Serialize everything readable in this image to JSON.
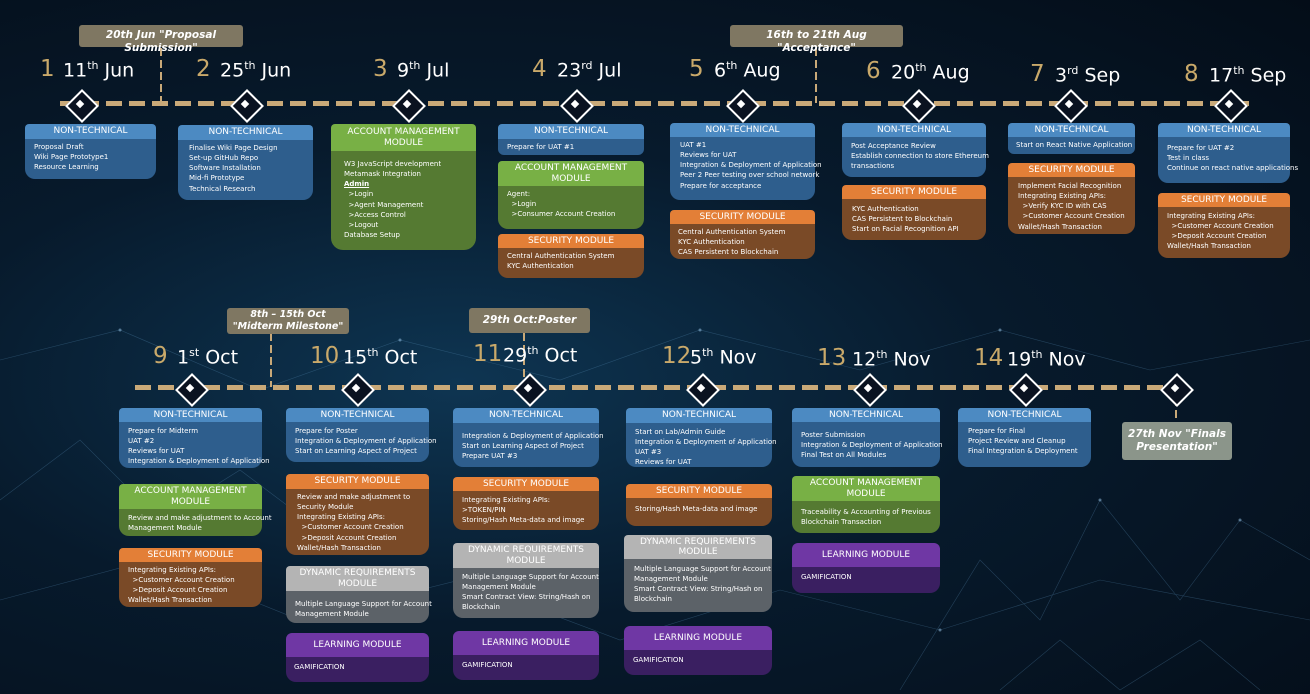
{
  "milestones": [
    {
      "n": "1",
      "d": "11",
      "s": "th",
      "m": "Jun"
    },
    {
      "n": "2",
      "d": "25",
      "s": "th",
      "m": "Jun"
    },
    {
      "n": "3",
      "d": "9",
      "s": "th",
      "m": "Jul"
    },
    {
      "n": "4",
      "d": "23",
      "s": "rd",
      "m": "Jul"
    },
    {
      "n": "5",
      "d": "6",
      "s": "th",
      "m": "Aug"
    },
    {
      "n": "6",
      "d": "20",
      "s": "th",
      "m": "Aug"
    },
    {
      "n": "7",
      "d": "3",
      "s": "rd",
      "m": "Sep"
    },
    {
      "n": "8",
      "d": "17",
      "s": "th",
      "m": "Sep"
    },
    {
      "n": "9",
      "d": "1",
      "s": "st",
      "m": "Oct"
    },
    {
      "n": "10",
      "d": "15",
      "s": "th",
      "m": "Oct"
    },
    {
      "n": "11",
      "d": "29",
      "s": "th",
      "m": "Oct"
    },
    {
      "n": "12",
      "d": "5",
      "s": "th",
      "m": "Nov"
    },
    {
      "n": "13",
      "d": "12",
      "s": "th",
      "m": "Nov"
    },
    {
      "n": "14",
      "d": "19",
      "s": "th",
      "m": "Nov"
    }
  ],
  "annotations": {
    "proposal": "20th Jun \"Proposal Submission\"",
    "acceptance": "16th to 21th Aug \"Acceptance\"",
    "midterm": "8th – 15th Oct \"Midterm Milestone\"",
    "poster": "29th Oct:Poster",
    "finals": "27th Nov \"Finals Presentation\""
  },
  "headings": {
    "nt": "NON-TECHNICAL",
    "am": "ACCOUNT MANAGEMENT MODULE",
    "sc": "SECURITY MODULE",
    "dy": "DYNAMIC REQUIREMENTS MODULE",
    "lm": "LEARNING MODULE"
  },
  "b1": {
    "nt": "Proposal Draft\nWiki Page Prototype1\nResource Learning"
  },
  "b2": {
    "nt": "Finalise Wiki Page Design\nSet-up GitHub Repo\nSoftware Installation\nMid-fi Prototype\nTechnical Research"
  },
  "b3": {
    "am1": "W3 JavaScript development\nMetamask Integration",
    "am_admin": "Admin",
    "am2": "  >Login\n  >Agent Management\n  >Access Control\n  >Logout\nDatabase Setup"
  },
  "b4": {
    "nt": "Prepare for UAT #1",
    "am": "Agent:\n  >Login\n  >Consumer Account Creation",
    "sc": "Central Authentication System\nKYC Authentication"
  },
  "b5": {
    "nt": "UAT #1\nReviews for UAT\nIntegration & Deployment of Application\nPeer 2 Peer testing over school network\nPrepare for acceptance",
    "sc": "Central Authentication System\nKYC Authentication\nCAS Persistent to Blockchain"
  },
  "b6": {
    "nt": "Post Acceptance Review\nEstablish connection to store Ethereum\ntransactions",
    "sc": "KYC Authentication\nCAS Persistent to Blockchain\nStart on Facial Recognition API"
  },
  "b7": {
    "nt": "Start on React Native Application",
    "sc": "Implement Facial Recognition\nIntegrating Existing APIs:\n  >Verify KYC ID with CAS\n  >Customer Account Creation\nWallet/Hash Transaction"
  },
  "b8": {
    "nt": "Prepare for UAT #2\nTest in class\nContinue on react native applications",
    "sc": "Integrating Existing APIs:\n  >Customer Account Creation\n  >Deposit Account Creation\nWallet/Hash Transaction"
  },
  "b9": {
    "nt": "Prepare for Midterm\nUAT #2\nReviews for UAT\nIntegration & Deployment of Application",
    "am": "Review and make adjustment to Account\nManagement Module",
    "sc": "Integrating Existing APIs:\n  >Customer Account Creation\n  >Deposit Account Creation\nWallet/Hash Transaction"
  },
  "b10": {
    "nt": "Prepare for Poster\nIntegration & Deployment of Application\nStart on Learning Aspect of Project",
    "sc": "Review and make adjustment to\nSecurity Module\nIntegrating Existing APIs:\n  >Customer Account Creation\n  >Deposit Account Creation\nWallet/Hash Transaction",
    "dy": "Multiple Language Support for Account\nManagement Module",
    "lm": "GAMIFICATION"
  },
  "b11": {
    "nt": "Integration & Deployment of Application\nStart on Learning Aspect of Project\nPrepare UAT #3",
    "sc": "Integrating Existing APIs:\n>TOKEN/PIN\nStoring/Hash Meta-data and image",
    "dy": "Multiple Language Support for Account\nManagement Module\nSmart Contract View: String/Hash on\nBlockchain",
    "lm": "GAMIFICATION"
  },
  "b12": {
    "nt": "Start on Lab/Admin Guide\nIntegration & Deployment of Application\nUAT #3\nReviews for UAT",
    "sc": "Storing/Hash Meta-data and image",
    "dy": "Multiple Language Support for Account\nManagement Module\nSmart Contract View: String/Hash on\nBlockchain",
    "lm": "GAMIFICATION"
  },
  "b13": {
    "nt": "Poster Submission\nIntegration & Deployment of Application\nFinal Test on All Modules",
    "am": "Traceability & Accounting of Previous\nBlockchain Transaction",
    "lm": "GAMIFICATION"
  },
  "b14": {
    "nt": "Prepare for Final\nProject Review and Cleanup\nFinal Integration & Deployment"
  }
}
